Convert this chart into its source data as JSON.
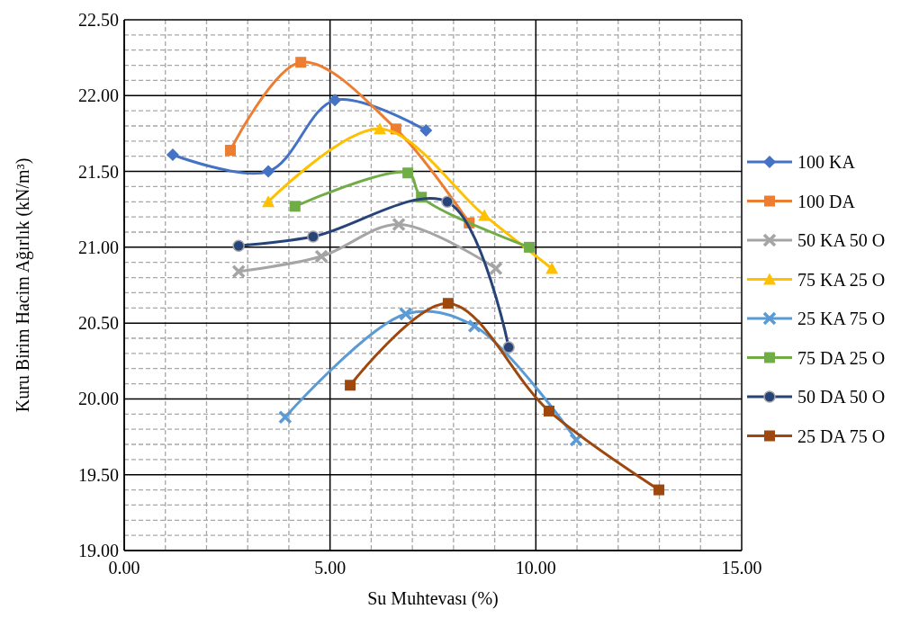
{
  "chart_data": {
    "type": "line",
    "xlabel": "Su Muhtevası (%)",
    "ylabel": "Kuru Birim Hacim Ağırlık (kN/m³)",
    "xlim": [
      0,
      15
    ],
    "xticks": [
      {
        "value": 0,
        "label": "0.00"
      },
      {
        "value": 5,
        "label": "5.00"
      },
      {
        "value": 10,
        "label": "10.00"
      },
      {
        "value": 15,
        "label": "15.00"
      }
    ],
    "ylim": [
      19,
      22.5
    ],
    "yticks": [
      {
        "value": 19,
        "label": "19.00"
      },
      {
        "value": 19.5,
        "label": "19.50"
      },
      {
        "value": 20,
        "label": "20.00"
      },
      {
        "value": 20.5,
        "label": "20.50"
      },
      {
        "value": 21,
        "label": "21.00"
      },
      {
        "value": 21.5,
        "label": "21.50"
      },
      {
        "value": 22,
        "label": "22.00"
      },
      {
        "value": 22.5,
        "label": "22.50"
      }
    ],
    "grid": true,
    "legend": "right",
    "series": [
      {
        "name": "100 KA",
        "color": "#4472c4",
        "marker": "diamond",
        "x": [
          1.18,
          3.5,
          5.12,
          7.33
        ],
        "values": [
          21.61,
          21.5,
          21.97,
          21.77
        ]
      },
      {
        "name": "100 DA",
        "color": "#ed7d31",
        "marker": "square",
        "x": [
          2.58,
          4.29,
          6.6,
          8.38
        ],
        "values": [
          21.64,
          22.22,
          21.78,
          21.16
        ]
      },
      {
        "name": "50 KA 50 O",
        "color": "#a5a5a5",
        "marker": "cross",
        "x": [
          2.78,
          4.79,
          6.67,
          9.03
        ],
        "values": [
          20.84,
          20.94,
          21.15,
          20.86
        ]
      },
      {
        "name": "75 KA 25 O",
        "color": "#ffc000",
        "marker": "triangle",
        "x": [
          3.5,
          6.21,
          8.75,
          10.39
        ],
        "values": [
          21.3,
          21.78,
          21.21,
          20.86
        ]
      },
      {
        "name": "25 KA 75 O",
        "color": "#5b9bd5",
        "marker": "cross",
        "x": [
          3.91,
          6.84,
          8.51,
          10.98
        ],
        "values": [
          19.88,
          20.56,
          20.48,
          19.73
        ]
      },
      {
        "name": "75 DA 25 O",
        "color": "#70ad47",
        "marker": "square",
        "x": [
          4.15,
          6.89,
          7.22,
          9.84
        ],
        "values": [
          21.27,
          21.49,
          21.33,
          21.0
        ]
      },
      {
        "name": "50 DA 50 O",
        "color": "#264478",
        "marker": "circle",
        "x": [
          2.78,
          4.59,
          7.85,
          9.34
        ],
        "values": [
          21.01,
          21.07,
          21.3,
          20.34
        ]
      },
      {
        "name": "25 DA 75 O",
        "color": "#9e480e",
        "marker": "square",
        "x": [
          5.49,
          7.87,
          10.32,
          12.99
        ],
        "values": [
          20.09,
          20.63,
          19.92,
          19.4
        ]
      }
    ]
  }
}
